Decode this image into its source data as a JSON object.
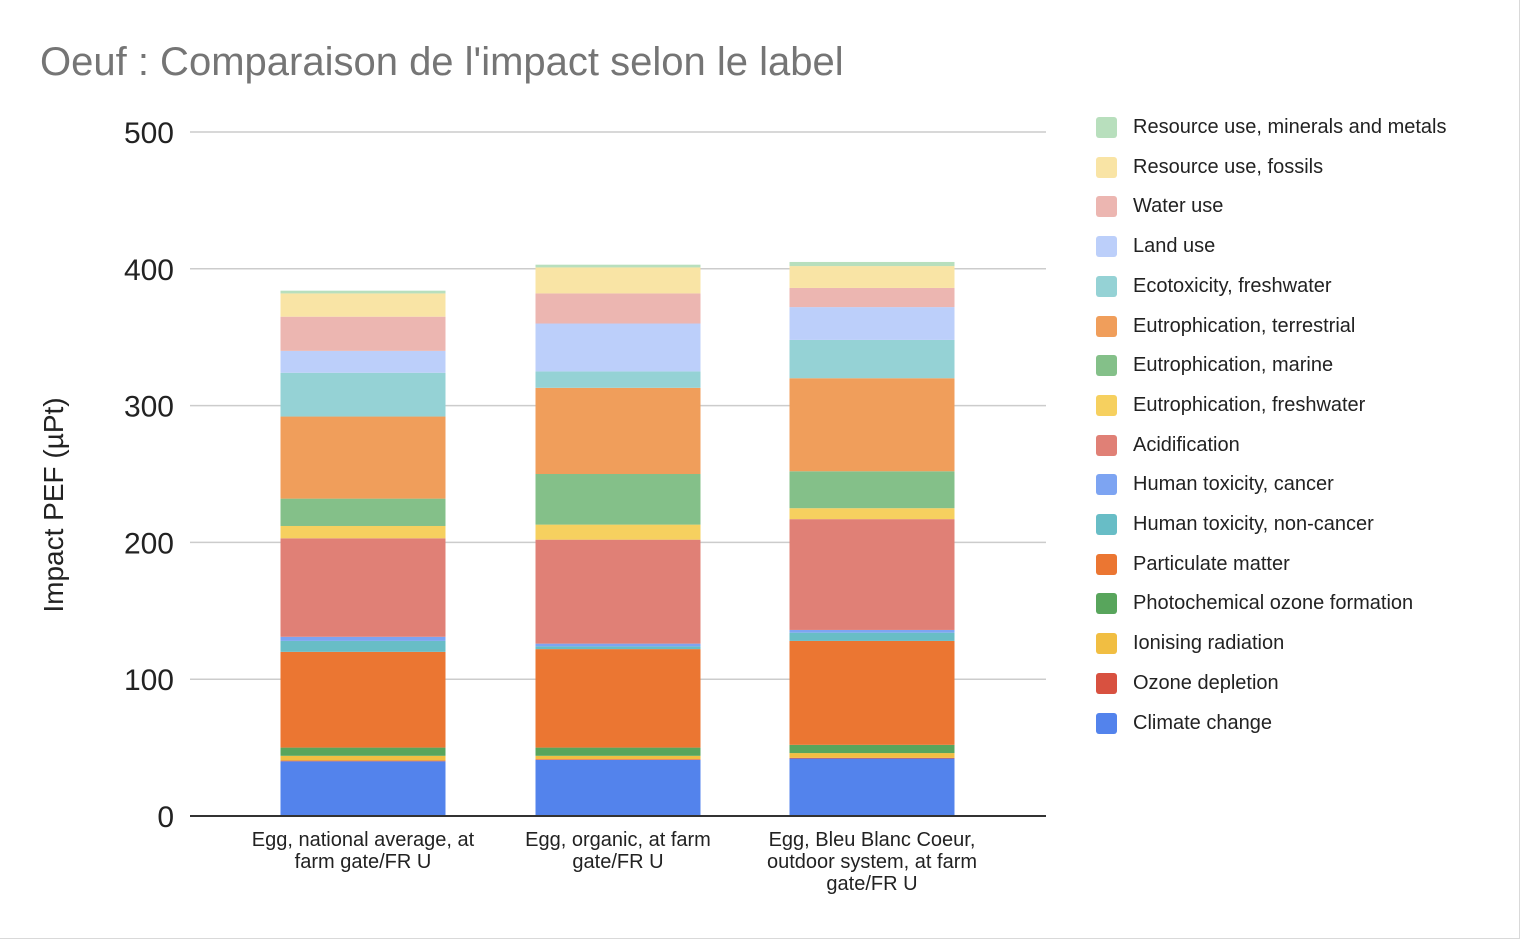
{
  "chart_data": {
    "type": "bar",
    "stacked": true,
    "title": "Oeuf : Comparaison de l'impact selon le label",
    "ylabel": "Impact PEF (µPt)",
    "xlabel": "",
    "ylim": [
      0,
      500
    ],
    "yticks": [
      0,
      100,
      200,
      300,
      400,
      500
    ],
    "grid": true,
    "legend_position": "right",
    "categories": [
      [
        "Egg, national average, at",
        "farm gate/FR U"
      ],
      [
        "Egg, organic, at farm",
        "gate/FR U"
      ],
      [
        "Egg, Bleu Blanc Coeur,",
        "outdoor system, at farm",
        "gate/FR U"
      ]
    ],
    "series": [
      {
        "name": "Climate change",
        "color": "#5383ec",
        "values": [
          40,
          41,
          42
        ]
      },
      {
        "name": "Ozone depletion",
        "color": "#d85140",
        "values": [
          0.5,
          0.5,
          0.5
        ]
      },
      {
        "name": "Ionising radiation",
        "color": "#f1be42",
        "values": [
          3.5,
          2.5,
          3.5
        ]
      },
      {
        "name": "Photochemical ozone formation",
        "color": "#58a55c",
        "values": [
          6,
          6,
          6
        ]
      },
      {
        "name": "Particulate matter",
        "color": "#eb7632",
        "values": [
          70,
          72,
          76
        ]
      },
      {
        "name": "Human toxicity, non-cancer",
        "color": "#68bdc6",
        "values": [
          8,
          2,
          6
        ]
      },
      {
        "name": "Human toxicity, cancer",
        "color": "#7da4f2",
        "values": [
          3,
          2,
          2
        ]
      },
      {
        "name": "Acidification",
        "color": "#e08076",
        "values": [
          72,
          76,
          81
        ]
      },
      {
        "name": "Eutrophication, freshwater",
        "color": "#f6d05f",
        "values": [
          9,
          11,
          8
        ]
      },
      {
        "name": "Eutrophication, marine",
        "color": "#84c089",
        "values": [
          20,
          37,
          27
        ]
      },
      {
        "name": "Eutrophication, terrestrial",
        "color": "#f09e5b",
        "values": [
          60,
          63,
          68
        ]
      },
      {
        "name": "Ecotoxicity, freshwater",
        "color": "#95d2d5",
        "values": [
          32,
          12,
          28
        ]
      },
      {
        "name": "Land use",
        "color": "#bccffa",
        "values": [
          16,
          35,
          24
        ]
      },
      {
        "name": "Water use",
        "color": "#ecb6b1",
        "values": [
          25,
          22,
          14
        ]
      },
      {
        "name": "Resource use, fossils",
        "color": "#f9e4a5",
        "values": [
          17,
          19,
          16
        ]
      },
      {
        "name": "Resource use, minerals and metals",
        "color": "#b8dfbd",
        "values": [
          2,
          2,
          3
        ]
      }
    ]
  }
}
